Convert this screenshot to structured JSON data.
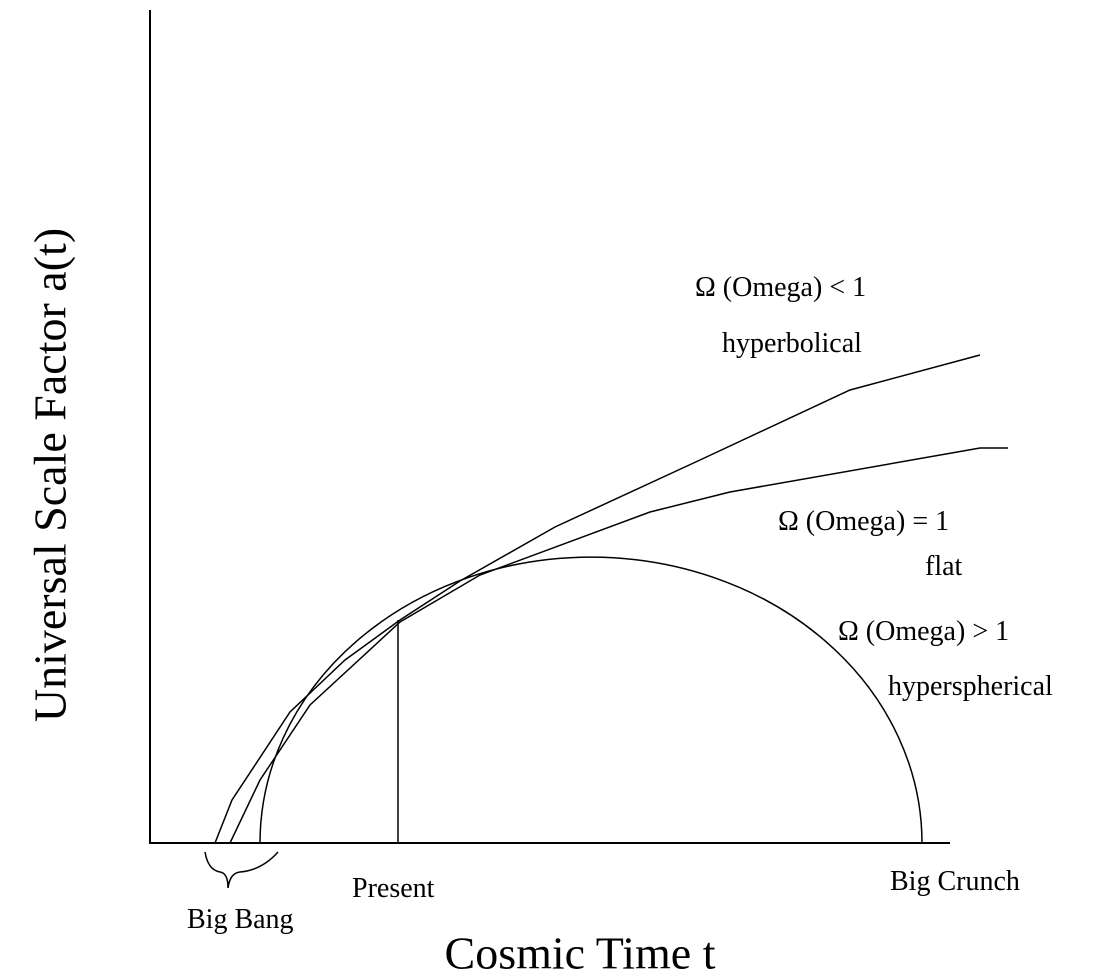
{
  "axes": {
    "x_label": "Cosmic Time t",
    "y_label": "Universal Scale Factor a(t)"
  },
  "curves": [
    {
      "label": "Ω (Omega) < 1",
      "type": "hyperbolical"
    },
    {
      "label": "Ω (Omega) = 1",
      "type": "flat"
    },
    {
      "label": "Ω (Omega) > 1",
      "type": "hyperspherical"
    }
  ],
  "annotations": {
    "present": "Present",
    "big_bang": "Big Bang",
    "big_crunch": "Big Crunch"
  }
}
